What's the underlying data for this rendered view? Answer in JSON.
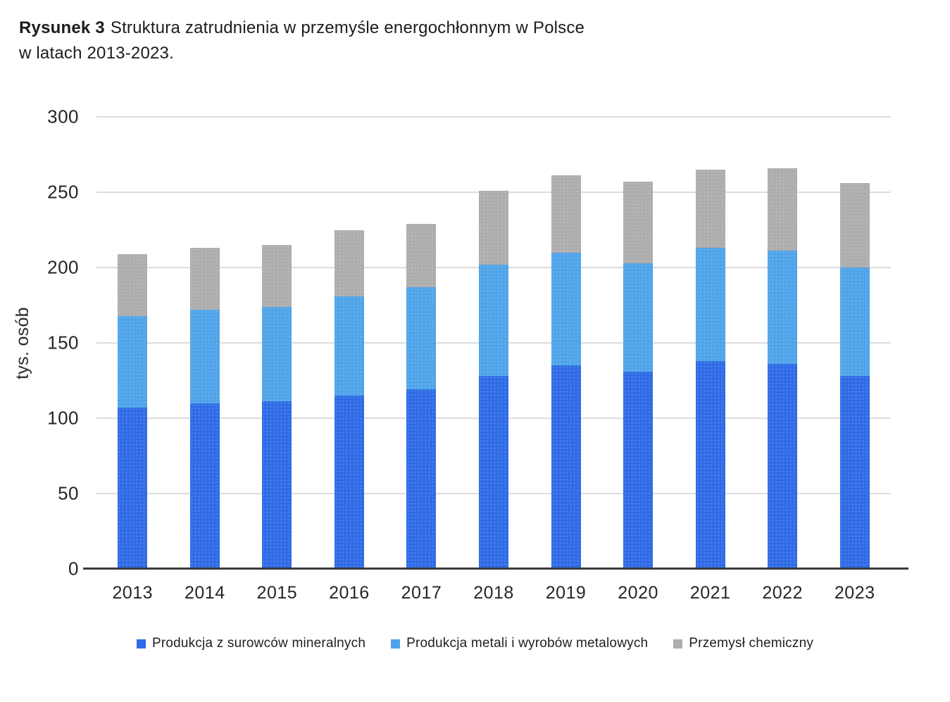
{
  "title": {
    "bold": "Rysunek 3",
    "line1_rest": "Struktura zatrudnienia w przemyśle energochłonnym w Polsce",
    "line2": "w latach 2013-2023."
  },
  "colors": {
    "minerals_blue": "#2f6be6",
    "metals_light_blue": "#4fa4e9",
    "chemical_gray": "#aeadae",
    "gridline": "#dcdcdc",
    "axis_line": "#3a3a3a",
    "text": "#262626"
  },
  "chart_data": {
    "type": "bar",
    "stacked": true,
    "title": "Rysunek 3 Struktura zatrudnienia w przemyśle energochłonnym w Polsce w latach 2013-2023.",
    "xlabel": "",
    "ylabel": "tys. osób",
    "ylim": [
      0,
      300
    ],
    "yticks": [
      0,
      50,
      100,
      150,
      200,
      250,
      300
    ],
    "grid": true,
    "legend_position": "bottom",
    "categories": [
      "2013",
      "2014",
      "2015",
      "2016",
      "2017",
      "2018",
      "2019",
      "2020",
      "2021",
      "2022",
      "2023"
    ],
    "series": [
      {
        "name": "Produkcja z surowców mineralnych",
        "color": "#2f6be6",
        "values": [
          107,
          110,
          111,
          115,
          119,
          128,
          135,
          131,
          138,
          136,
          128
        ]
      },
      {
        "name": "Produkcja metali i wyrobów metalowych",
        "color": "#4fa4e9",
        "values": [
          61,
          62,
          63,
          66,
          68,
          74,
          75,
          72,
          75,
          75,
          72
        ]
      },
      {
        "name": "Przemysł chemiczny",
        "color": "#aeadae",
        "values": [
          41,
          41,
          41,
          44,
          42,
          49,
          51,
          54,
          52,
          55,
          56
        ]
      }
    ],
    "totals": [
      209,
      213,
      215,
      225,
      229,
      251,
      261,
      257,
      265,
      266,
      256
    ]
  }
}
